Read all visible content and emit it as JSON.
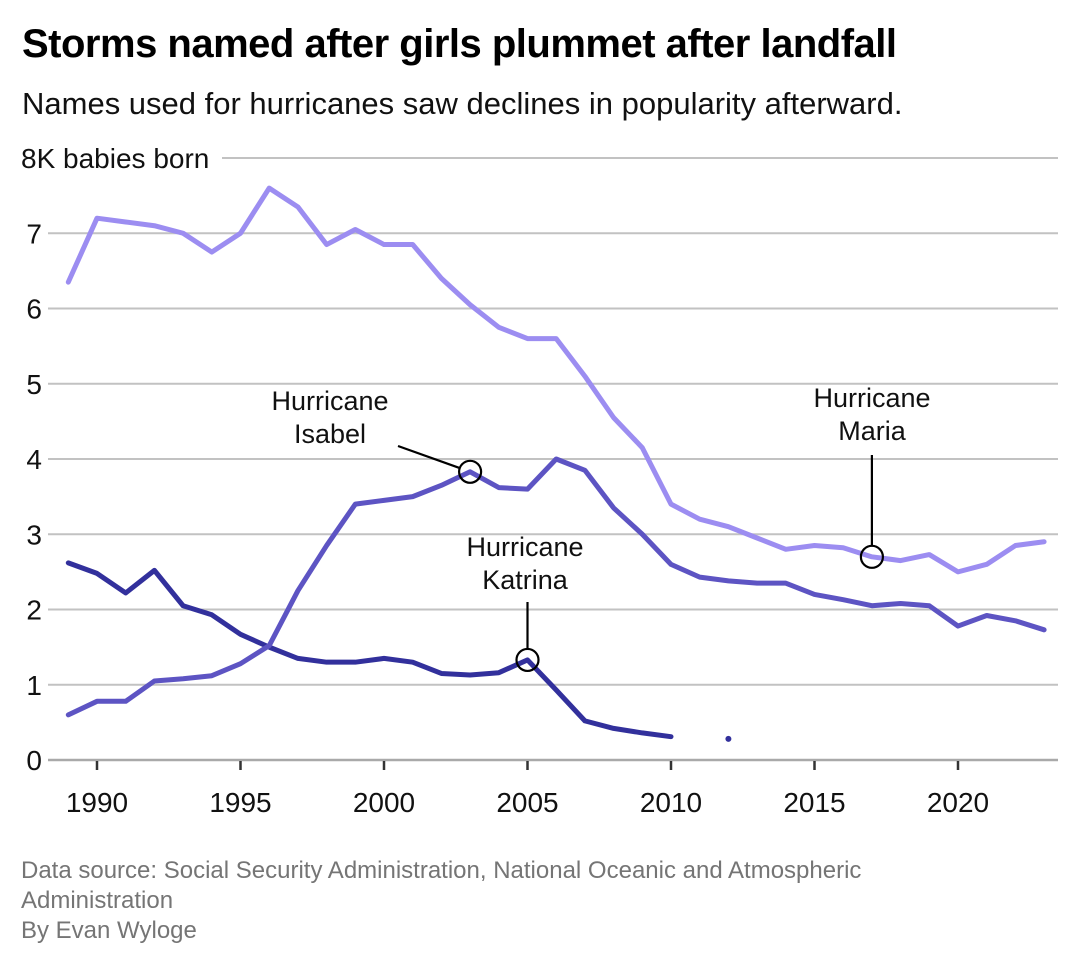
{
  "header": {
    "title": "Storms named after girls plummet after landfall",
    "subtitle": "Names used for hurricanes saw declines in popularity afterward."
  },
  "footer": {
    "source": "Data source: Social Security Administration, National Oceanic and Atmospheric Administration",
    "byline": "By Evan Wyloge"
  },
  "colors": {
    "background": "#ffffff",
    "gridline": "#c2c2c2",
    "axis_line": "#a9a9a9",
    "tick_mark": "#333333",
    "axis_text": "#111111",
    "annotation_text": "#111111",
    "annotation_line": "#000000",
    "footer_text": "#757575",
    "series_maria": "#9c8df1",
    "series_isabel": "#5d54c3",
    "series_katrina": "#32309c"
  },
  "chart_data": {
    "type": "line",
    "title": "Storms named after girls plummet after landfall",
    "subtitle": "Names used for hurricanes saw declines in popularity afterward.",
    "xlabel": "",
    "ylabel": "8K babies born",
    "ylim": [
      0,
      8
    ],
    "xlim": [
      1989,
      2023
    ],
    "grid": "horizontal",
    "legend_position": "none",
    "x": [
      1989,
      1990,
      1991,
      1992,
      1993,
      1994,
      1995,
      1996,
      1997,
      1998,
      1999,
      2000,
      2001,
      2002,
      2003,
      2004,
      2005,
      2006,
      2007,
      2008,
      2009,
      2010,
      2011,
      2012,
      2013,
      2014,
      2015,
      2016,
      2017,
      2018,
      2019,
      2020,
      2021,
      2022,
      2023
    ],
    "series": [
      {
        "name": "Maria",
        "color": "#9c8df1",
        "values": [
          6.35,
          7.2,
          7.15,
          7.1,
          7.0,
          6.75,
          7.0,
          7.6,
          7.35,
          6.85,
          7.05,
          6.85,
          6.85,
          6.4,
          6.05,
          5.75,
          5.6,
          5.6,
          5.1,
          4.55,
          4.15,
          3.4,
          3.2,
          3.1,
          2.95,
          2.8,
          2.85,
          2.82,
          2.7,
          2.65,
          2.73,
          2.5,
          2.6,
          2.85,
          2.9
        ]
      },
      {
        "name": "Isabel",
        "color": "#5d54c3",
        "values": [
          0.6,
          0.78,
          0.78,
          1.05,
          1.08,
          1.12,
          1.28,
          1.52,
          2.25,
          2.85,
          3.4,
          3.45,
          3.5,
          3.65,
          3.83,
          3.62,
          3.6,
          4.0,
          3.85,
          3.35,
          3.0,
          2.6,
          2.43,
          2.38,
          2.35,
          2.35,
          2.2,
          2.13,
          2.05,
          2.08,
          2.05,
          1.78,
          1.92,
          1.85,
          1.73
        ]
      },
      {
        "name": "Katrina",
        "color": "#32309c",
        "values": [
          2.62,
          2.48,
          2.22,
          2.52,
          2.05,
          1.93,
          1.67,
          1.5,
          1.35,
          1.3,
          1.3,
          1.35,
          1.3,
          1.15,
          1.13,
          1.16,
          1.33,
          0.93,
          0.52,
          0.42,
          0.36,
          0.31,
          null,
          0.28,
          null,
          null,
          null,
          null,
          null,
          null,
          null,
          null,
          null,
          null,
          null
        ]
      }
    ],
    "y_axis": {
      "top_label": "8K babies born",
      "ticks": [
        0,
        1,
        2,
        3,
        4,
        5,
        6,
        7
      ]
    },
    "x_axis": {
      "ticks": [
        1990,
        1995,
        2000,
        2005,
        2010,
        2015,
        2020
      ]
    },
    "annotations": [
      {
        "id": "isabel",
        "text_lines": [
          "Hurricane",
          "Isabel"
        ],
        "series": "Isabel",
        "year": 2003,
        "value": 3.83
      },
      {
        "id": "katrina",
        "text_lines": [
          "Hurricane",
          "Katrina"
        ],
        "series": "Katrina",
        "year": 2005,
        "value": 1.33
      },
      {
        "id": "maria",
        "text_lines": [
          "Hurricane",
          "Maria"
        ],
        "series": "Maria",
        "year": 2017,
        "value": 2.7
      }
    ]
  }
}
